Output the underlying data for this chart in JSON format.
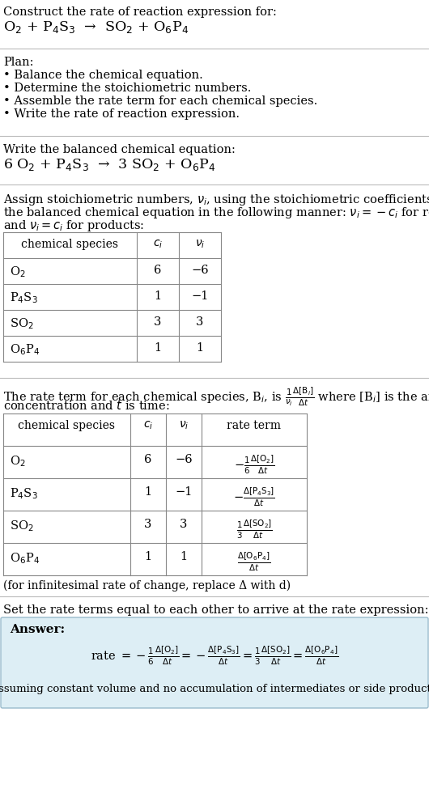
{
  "title_line1": "Construct the rate of reaction expression for:",
  "title_line2": "O$_2$ + P$_4$S$_3$  →  SO$_2$ + O$_6$P$_4$",
  "plan_header": "Plan:",
  "plan_items": [
    "• Balance the chemical equation.",
    "• Determine the stoichiometric numbers.",
    "• Assemble the rate term for each chemical species.",
    "• Write the rate of reaction expression."
  ],
  "balanced_header": "Write the balanced chemical equation:",
  "balanced_eq": "6 O$_2$ + P$_4$S$_3$  →  3 SO$_2$ + O$_6$P$_4$",
  "stoich_intro1": "Assign stoichiometric numbers, $\\nu_i$, using the stoichiometric coefficients, $c_i$, from",
  "stoich_intro2": "the balanced chemical equation in the following manner: $\\nu_i = -c_i$ for reactants",
  "stoich_intro3": "and $\\nu_i = c_i$ for products:",
  "table1_headers": [
    "chemical species",
    "$c_i$",
    "$\\nu_i$"
  ],
  "table1_rows": [
    [
      "O$_2$",
      "6",
      "−6"
    ],
    [
      "P$_4$S$_3$",
      "1",
      "−1"
    ],
    [
      "SO$_2$",
      "3",
      "3"
    ],
    [
      "O$_6$P$_4$",
      "1",
      "1"
    ]
  ],
  "rate_intro1": "The rate term for each chemical species, B$_i$, is $\\frac{1}{\\nu_i}\\frac{\\Delta[\\mathrm{B}_i]}{\\Delta t}$ where [B$_i$] is the amount",
  "rate_intro2": "concentration and $t$ is time:",
  "table2_headers": [
    "chemical species",
    "$c_i$",
    "$\\nu_i$",
    "rate term"
  ],
  "table2_rows": [
    [
      "O$_2$",
      "6",
      "−6",
      "$-\\frac{1}{6}\\frac{\\Delta[\\mathrm{O_2}]}{\\Delta t}$"
    ],
    [
      "P$_4$S$_3$",
      "1",
      "−1",
      "$-\\frac{\\Delta[\\mathrm{P_4S_3}]}{\\Delta t}$"
    ],
    [
      "SO$_2$",
      "3",
      "3",
      "$\\frac{1}{3}\\frac{\\Delta[\\mathrm{SO_2}]}{\\Delta t}$"
    ],
    [
      "O$_6$P$_4$",
      "1",
      "1",
      "$\\frac{\\Delta[\\mathrm{O_6P_4}]}{\\Delta t}$"
    ]
  ],
  "infin_note": "(for infinitesimal rate of change, replace Δ with d)",
  "answer_intro": "Set the rate terms equal to each other to arrive at the rate expression:",
  "answer_label": "Answer:",
  "answer_eq": "rate $= -\\frac{1}{6}\\frac{\\Delta[\\mathrm{O_2}]}{\\Delta t} = -\\frac{\\Delta[\\mathrm{P_4S_3}]}{\\Delta t} = \\frac{1}{3}\\frac{\\Delta[\\mathrm{SO_2}]}{\\Delta t} = \\frac{\\Delta[\\mathrm{O_6P_4}]}{\\Delta t}$",
  "answer_note": "(assuming constant volume and no accumulation of intermediates or side products)",
  "font_family": "DejaVu Serif",
  "bg_color": "#ffffff",
  "answer_box_bg": "#ddeef5",
  "answer_box_border": "#99bbcc"
}
